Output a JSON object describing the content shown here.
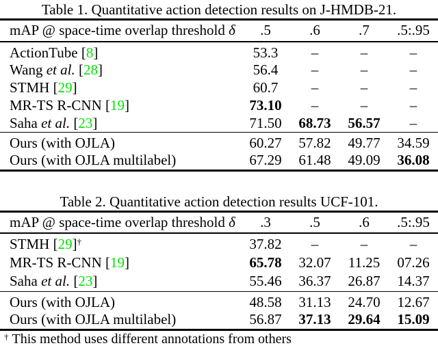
{
  "page": {
    "background": "#ffffff",
    "text_color": "#000000",
    "citation_color": "#00e400"
  },
  "tables": [
    {
      "title": "Table 1. Quantitative action detection results on J-HMDB-21.",
      "header": {
        "label": "mAP @ space-time overlap threshold",
        "symbol": "δ",
        "columns": [
          ".5",
          ".6",
          ".7",
          ".5:.95"
        ]
      },
      "groups": [
        {
          "rows": [
            {
              "method": "ActionTube",
              "etal": false,
              "cite": "8",
              "dagger": false,
              "values": [
                {
                  "v": "53.3",
                  "b": false
                },
                {
                  "v": "–",
                  "b": false
                },
                {
                  "v": "–",
                  "b": false
                },
                {
                  "v": "–",
                  "b": false
                }
              ]
            },
            {
              "method": "Wang",
              "etal": true,
              "cite": "28",
              "dagger": false,
              "values": [
                {
                  "v": "56.4",
                  "b": false
                },
                {
                  "v": "–",
                  "b": false
                },
                {
                  "v": "–",
                  "b": false
                },
                {
                  "v": "–",
                  "b": false
                }
              ]
            },
            {
              "method": "STMH",
              "etal": false,
              "cite": "29",
              "dagger": false,
              "values": [
                {
                  "v": "60.7",
                  "b": false
                },
                {
                  "v": "–",
                  "b": false
                },
                {
                  "v": "–",
                  "b": false
                },
                {
                  "v": "–",
                  "b": false
                }
              ]
            },
            {
              "method": "MR-TS R-CNN",
              "etal": false,
              "cite": "19",
              "dagger": false,
              "values": [
                {
                  "v": "73.10",
                  "b": true
                },
                {
                  "v": "–",
                  "b": false
                },
                {
                  "v": "–",
                  "b": false
                },
                {
                  "v": "–",
                  "b": false
                }
              ]
            },
            {
              "method": "Saha",
              "etal": true,
              "cite": "23",
              "dagger": false,
              "values": [
                {
                  "v": "71.50",
                  "b": false
                },
                {
                  "v": "68.73",
                  "b": true
                },
                {
                  "v": "56.57",
                  "b": true
                },
                {
                  "v": "–",
                  "b": false
                }
              ]
            }
          ]
        },
        {
          "rows": [
            {
              "method": "Ours (with OJLA)",
              "etal": false,
              "cite": null,
              "dagger": false,
              "values": [
                {
                  "v": "60.27",
                  "b": false
                },
                {
                  "v": "57.82",
                  "b": false
                },
                {
                  "v": "49.77",
                  "b": false
                },
                {
                  "v": "34.59",
                  "b": false
                }
              ]
            },
            {
              "method": "Ours (with OJLA multilabel)",
              "etal": false,
              "cite": null,
              "dagger": false,
              "values": [
                {
                  "v": "67.29",
                  "b": false
                },
                {
                  "v": "61.48",
                  "b": false
                },
                {
                  "v": "49.09",
                  "b": false
                },
                {
                  "v": "36.08",
                  "b": true
                }
              ]
            }
          ]
        }
      ]
    },
    {
      "title": "Table 2. Quantitative action detection results UCF-101.",
      "header": {
        "label": "mAP @ space-time overlap threshold",
        "symbol": "δ",
        "columns": [
          ".3",
          ".5",
          ".6",
          ".5:.95"
        ]
      },
      "groups": [
        {
          "rows": [
            {
              "method": "STMH",
              "etal": false,
              "cite": "29",
              "dagger": true,
              "values": [
                {
                  "v": "37.82",
                  "b": false
                },
                {
                  "v": "–",
                  "b": false
                },
                {
                  "v": "–",
                  "b": false
                },
                {
                  "v": "–",
                  "b": false
                }
              ]
            },
            {
              "method": "MR-TS R-CNN",
              "etal": false,
              "cite": "19",
              "dagger": false,
              "values": [
                {
                  "v": "65.78",
                  "b": true
                },
                {
                  "v": "32.07",
                  "b": false
                },
                {
                  "v": "11.25",
                  "b": false
                },
                {
                  "v": "07.26",
                  "b": false
                }
              ]
            },
            {
              "method": "Saha",
              "etal": true,
              "cite": "23",
              "dagger": false,
              "values": [
                {
                  "v": "55.46",
                  "b": false
                },
                {
                  "v": "36.37",
                  "b": false
                },
                {
                  "v": "26.87",
                  "b": false
                },
                {
                  "v": "14.37",
                  "b": false
                }
              ]
            }
          ]
        },
        {
          "rows": [
            {
              "method": "Ours (with OJLA)",
              "etal": false,
              "cite": null,
              "dagger": false,
              "values": [
                {
                  "v": "48.58",
                  "b": false
                },
                {
                  "v": "31.13",
                  "b": false
                },
                {
                  "v": "24.70",
                  "b": false
                },
                {
                  "v": "12.67",
                  "b": false
                }
              ]
            },
            {
              "method": "Ours (with OJLA multilabel)",
              "etal": false,
              "cite": null,
              "dagger": false,
              "values": [
                {
                  "v": "56.87",
                  "b": false
                },
                {
                  "v": "37.13",
                  "b": true
                },
                {
                  "v": "29.64",
                  "b": true
                },
                {
                  "v": "15.09",
                  "b": true
                }
              ]
            }
          ]
        }
      ]
    }
  ],
  "footnote": {
    "marker": "†",
    "text": "This method uses different annotations from others"
  }
}
